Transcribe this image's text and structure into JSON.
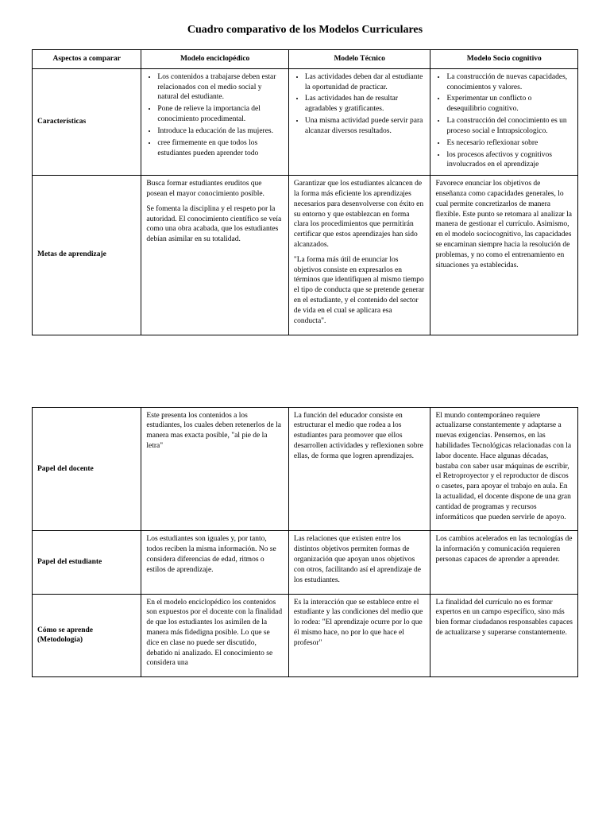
{
  "title": "Cuadro comparativo de los Modelos Curriculares",
  "headers": {
    "c0": "Aspectos a comparar",
    "c1": "Modelo enciclopédico",
    "c2": "Modelo Técnico",
    "c3": "Modelo Socio cognitivo"
  },
  "rows": {
    "caracteristicas": {
      "label": "Características",
      "enc": {
        "b0": "Los contenidos a trabajarse deben estar relacionados con el medio social y natural del estudiante.",
        "b1": "Pone de relieve la importancia del conocimiento procedimental.",
        "b2": "Introduce la educación de las mujeres.",
        "b3": "cree firmemente en que todos los estudiantes pueden aprender todo"
      },
      "tec": {
        "b0": "Las actividades deben dar al estudiante la oportunidad de practicar.",
        "b1": "Las actividades han de resultar agradables y gratificantes.",
        "b2": "Una misma actividad puede servir para alcanzar diversos resultados."
      },
      "soc": {
        "b0": "La construcción de nuevas capacidades, conocimientos y valores.",
        "b1": "Experimentar un conflicto o desequilibrio cognitivo.",
        "b2": "La construcción del conocimiento es un proceso social e Intrapsicologico.",
        "b3": "Es necesario reflexionar sobre",
        "b4": "los procesos afectivos y cognitivos involucrados en el aprendizaje"
      }
    },
    "metas": {
      "label": "Metas de aprendizaje",
      "enc": {
        "p0": "Busca formar estudiantes eruditos que posean el mayor conocimiento posible.",
        "p1": "Se fomenta la disciplina y el respeto por la autoridad. El conocimiento científico se veía como una obra acabada, que los estudiantes debían asimilar en su totalidad."
      },
      "tec": {
        "p0": "Garantizar que los estudiantes alcancen de la forma más eficiente los aprendizajes necesarios para desenvolverse con éxito en su entorno y que establezcan en forma clara los procedimientos que permitirán certificar que estos aprendizajes han sido alcanzados.",
        "p1": "\"La forma más útil de enunciar los objetivos consiste en expresarlos en términos que identifiquen al mismo tiempo el tipo de conducta que se pretende generar en el estudiante, y el contenido del sector de vida en el cual se aplicara esa conducta\"."
      },
      "soc": {
        "p0": "Favorece enunciar los objetivos de enseñanza como capacidades generales, lo cual permite concretizarlos de manera flexible. Este punto se retomara al analizar la manera de gestionar el currículo. Asimismo, en el modelo sociocognitivo, las capacidades se encaminan siempre hacia la resolución de problemas, y no como el entrenamiento en situaciones ya establecidas."
      }
    },
    "docente": {
      "label": "Papel del docente",
      "enc": {
        "p0": "Este presenta los contenidos a los estudiantes, los cuales deben retenerlos de la manera mas exacta posible, \"al pie de la letra\""
      },
      "tec": {
        "p0": "La función del educador consiste en estructurar el medio que rodea a los estudiantes para promover que ellos desarrollen actividades y reflexionen sobre ellas, de forma que logren aprendizajes."
      },
      "soc": {
        "p0": "El mundo contemporáneo requiere actualizarse constantemente y adaptarse a nuevas exigencias. Pensemos, en las habilidades Tecnológicas relacionadas con la labor docente. Hace algunas décadas, bastaba con saber usar máquinas de escribir, el Retroproyector y el reproductor de discos o casetes, para apoyar el trabajo en aula. En la actualidad, el docente dispone de una gran cantidad de programas y recursos informáticos que pueden servirle de apoyo."
      }
    },
    "estudiante": {
      "label": "Papel del estudiante",
      "enc": {
        "p0": "Los estudiantes son iguales y, por tanto, todos reciben la misma información. No se considera diferencias de edad, ritmos o estilos de aprendizaje."
      },
      "tec": {
        "p0": "Las relaciones que existen entre los distintos objetivos permiten formas de organización que apoyan unos objetivos con otros, facilitando así el aprendizaje de los estudiantes."
      },
      "soc": {
        "p0": "Los cambios acelerados en las tecnologías de la información y comunicación requieren personas capaces de aprender a aprender."
      }
    },
    "como": {
      "label": "Cómo se aprende (Metodología)",
      "enc": {
        "p0": "En el modelo enciclopédico los contenidos son expuestos por el docente con la finalidad de que los estudiantes los asimilen de la manera más fidedigna posible. Lo que se dice en clase no puede ser discutido, debatido ni analizado. El conocimiento se considera una"
      },
      "tec": {
        "p0": "Es la interacción que se establece entre el estudiante y las condiciones del medio que lo rodea: \"El aprendizaje ocurre por lo que él mismo hace, no por lo que hace el profesor\""
      },
      "soc": {
        "p0": "La finalidad del currículo no es formar expertos en un campo específico, sino más bien formar ciudadanos responsables capaces de actualizarse y superarse constantemente."
      }
    }
  }
}
